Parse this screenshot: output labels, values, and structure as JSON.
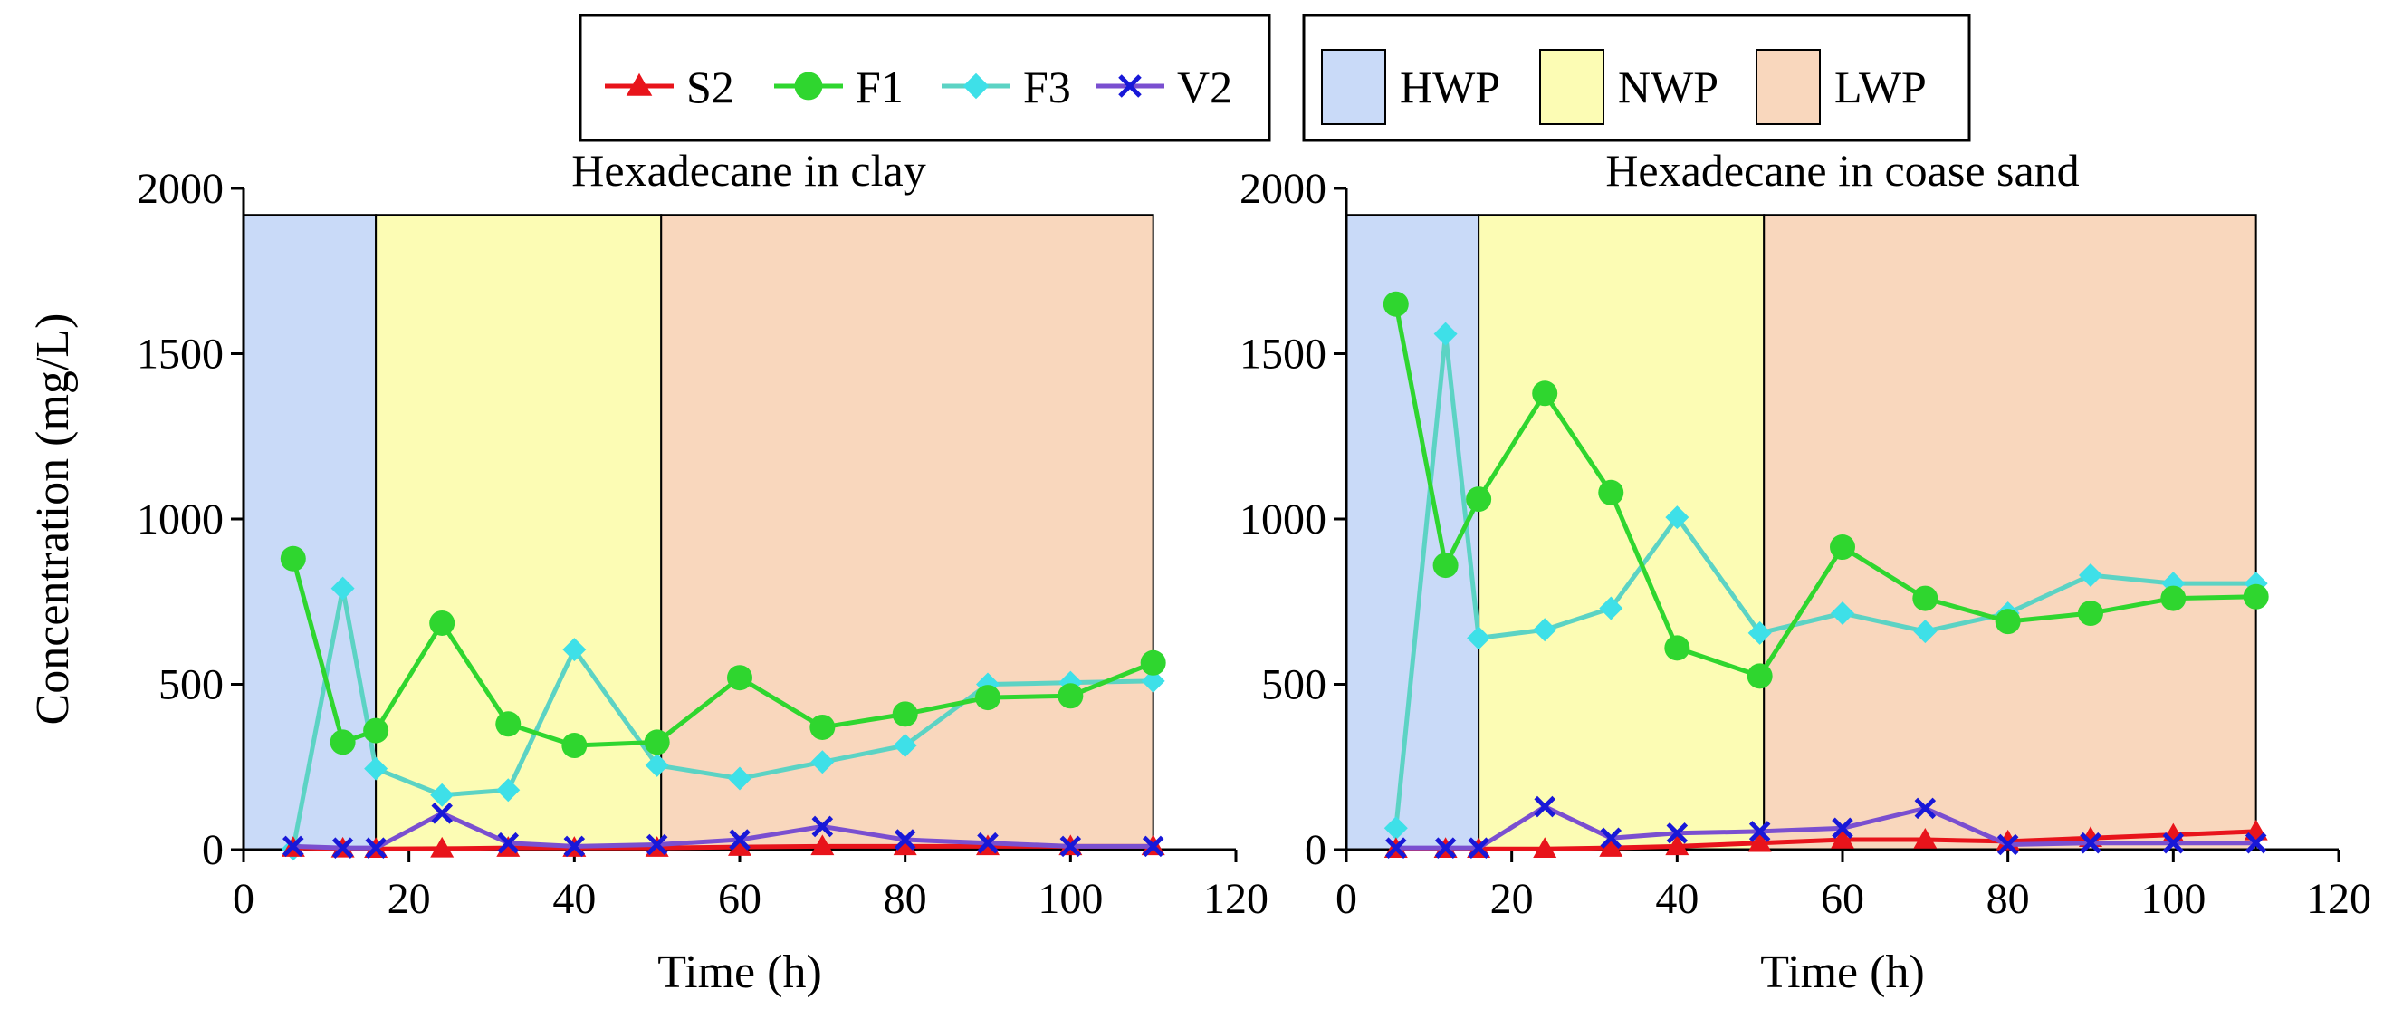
{
  "colors": {
    "S2": "#e8141b",
    "F1": "#2fd62f",
    "F3": "#3ee0e8",
    "F3_line": "#5cd3c4",
    "V2": "#1818d8",
    "V2_line": "#7a4fd0",
    "HWP": "#c9daf8",
    "NWP": "#fcfcb4",
    "LWP": "#f9d7bd",
    "frame": "#000000"
  },
  "legend": {
    "series": [
      {
        "name": "S2",
        "marker": "triangle"
      },
      {
        "name": "F1",
        "marker": "circle"
      },
      {
        "name": "F3",
        "marker": "diamond"
      },
      {
        "name": "V2",
        "marker": "x"
      }
    ],
    "phases": [
      "HWP",
      "NWP",
      "LWP"
    ]
  },
  "chart_data": [
    {
      "type": "line",
      "title": "Hexadecane in clay",
      "xlabel": "Time (h)",
      "ylabel": "Concentration (mg/L)",
      "xlim": [
        0,
        120
      ],
      "ylim": [
        0,
        2000
      ],
      "xticks": [
        0,
        20,
        40,
        60,
        80,
        100,
        120
      ],
      "yticks": [
        0,
        500,
        1000,
        1500,
        2000
      ],
      "phases": [
        {
          "name": "HWP",
          "from": 0,
          "to": 16
        },
        {
          "name": "NWP",
          "from": 16,
          "to": 50.5
        },
        {
          "name": "LWP",
          "from": 50.5,
          "to": 110
        }
      ],
      "x": [
        6,
        12,
        16,
        24,
        32,
        40,
        50,
        60,
        70,
        80,
        90,
        100,
        110
      ],
      "series": [
        {
          "name": "S2",
          "values": [
            5,
            3,
            2,
            3,
            5,
            5,
            5,
            8,
            10,
            10,
            10,
            10,
            10
          ]
        },
        {
          "name": "F1",
          "values": [
            880,
            325,
            360,
            685,
            380,
            315,
            325,
            520,
            370,
            410,
            460,
            465,
            565
          ]
        },
        {
          "name": "F3",
          "values": [
            2,
            790,
            245,
            165,
            180,
            605,
            255,
            215,
            265,
            315,
            500,
            505,
            510
          ]
        },
        {
          "name": "V2",
          "values": [
            10,
            5,
            5,
            110,
            20,
            10,
            15,
            30,
            70,
            30,
            20,
            10,
            10
          ]
        }
      ]
    },
    {
      "type": "line",
      "title": "Hexadecane in coase sand",
      "xlabel": "Time (h)",
      "ylabel": "",
      "xlim": [
        0,
        120
      ],
      "ylim": [
        0,
        2000
      ],
      "xticks": [
        0,
        20,
        40,
        60,
        80,
        100,
        120
      ],
      "yticks": [
        0,
        500,
        1000,
        1500,
        2000
      ],
      "phases": [
        {
          "name": "HWP",
          "from": 0,
          "to": 16
        },
        {
          "name": "NWP",
          "from": 16,
          "to": 50.5
        },
        {
          "name": "LWP",
          "from": 50.5,
          "to": 110
        }
      ],
      "x": [
        6,
        12,
        16,
        24,
        32,
        40,
        50,
        60,
        70,
        80,
        90,
        100,
        110
      ],
      "series": [
        {
          "name": "S2",
          "values": [
            2,
            2,
            2,
            2,
            5,
            10,
            20,
            30,
            30,
            25,
            35,
            45,
            55
          ]
        },
        {
          "name": "F1",
          "values": [
            1650,
            860,
            1060,
            1380,
            1080,
            610,
            525,
            915,
            760,
            690,
            715,
            760,
            765
          ]
        },
        {
          "name": "F3",
          "values": [
            65,
            1560,
            640,
            665,
            730,
            1005,
            655,
            715,
            660,
            715,
            830,
            805,
            805
          ]
        },
        {
          "name": "V2",
          "values": [
            5,
            5,
            5,
            130,
            35,
            50,
            55,
            65,
            125,
            15,
            20,
            20,
            20
          ]
        }
      ]
    }
  ]
}
